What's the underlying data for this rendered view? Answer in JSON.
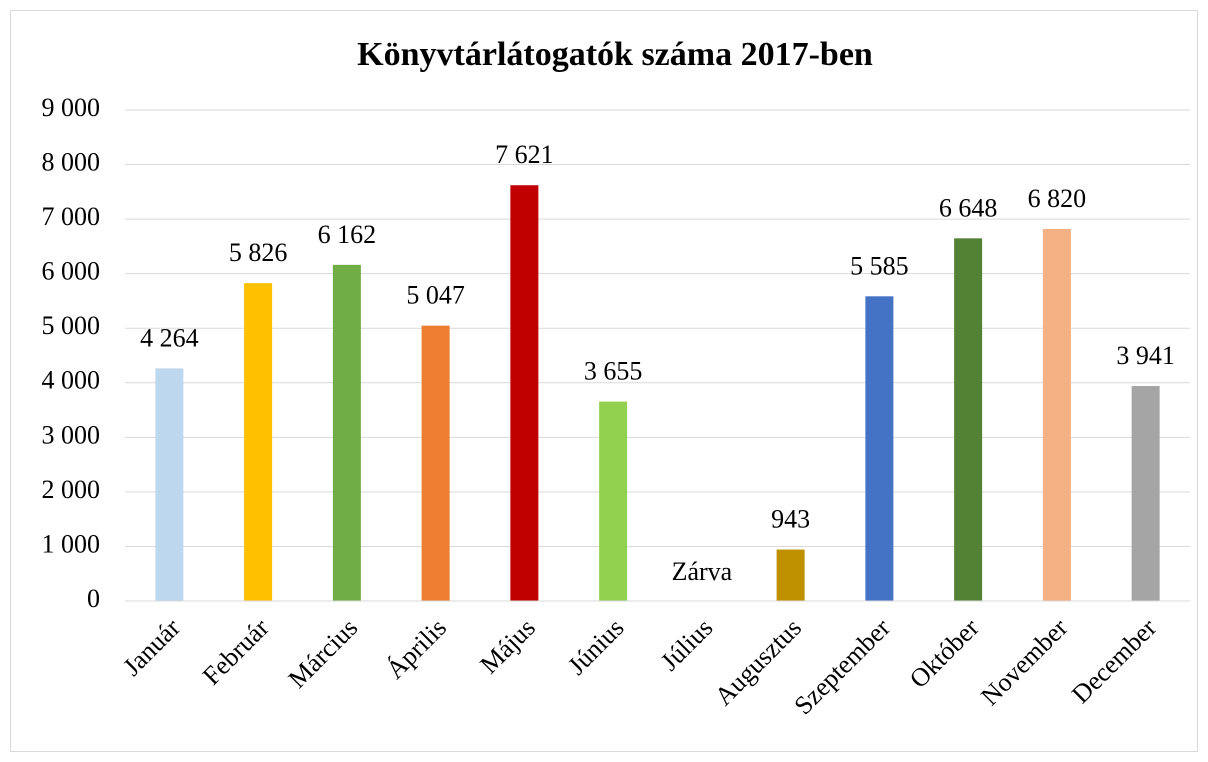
{
  "chart_data": {
    "type": "bar",
    "title": "Könyvtárlátogatók száma 2017-ben",
    "categories": [
      "Január",
      "Február",
      "Március",
      "Április",
      "Május",
      "Június",
      "Július",
      "Augusztus",
      "Szeptember",
      "Október",
      "November",
      "December"
    ],
    "values": [
      4264,
      5826,
      6162,
      5047,
      7621,
      3655,
      null,
      943,
      5585,
      6648,
      6820,
      3941
    ],
    "value_labels": [
      "4 264",
      "5 826",
      "6 162",
      "5 047",
      "7 621",
      "3 655",
      null,
      "943",
      "5 585",
      "6 648",
      "6 820",
      "3 941"
    ],
    "colors": [
      "#bdd7ee",
      "#ffc000",
      "#70ad47",
      "#ed7d31",
      "#c00000",
      "#92d050",
      null,
      "#bf9000",
      "#4472c4",
      "#548235",
      "#f4b183",
      "#a5a5a5"
    ],
    "annotation": "Zárva",
    "ylim": [
      0,
      9000
    ],
    "yticks": [
      0,
      {
        "value": 1000,
        "label": "1 000"
      },
      {
        "value": 2000,
        "label": "2 000"
      },
      {
        "value": 3000,
        "label": "3 000"
      },
      {
        "value": 4000,
        "label": "4 000"
      },
      {
        "value": 5000,
        "label": "5 000"
      },
      {
        "value": 6000,
        "label": "6 000"
      },
      {
        "value": 7000,
        "label": "7 000"
      },
      {
        "value": 8000,
        "label": "8 000"
      },
      {
        "value": 9000,
        "label": "9 000"
      }
    ],
    "grid": true
  }
}
